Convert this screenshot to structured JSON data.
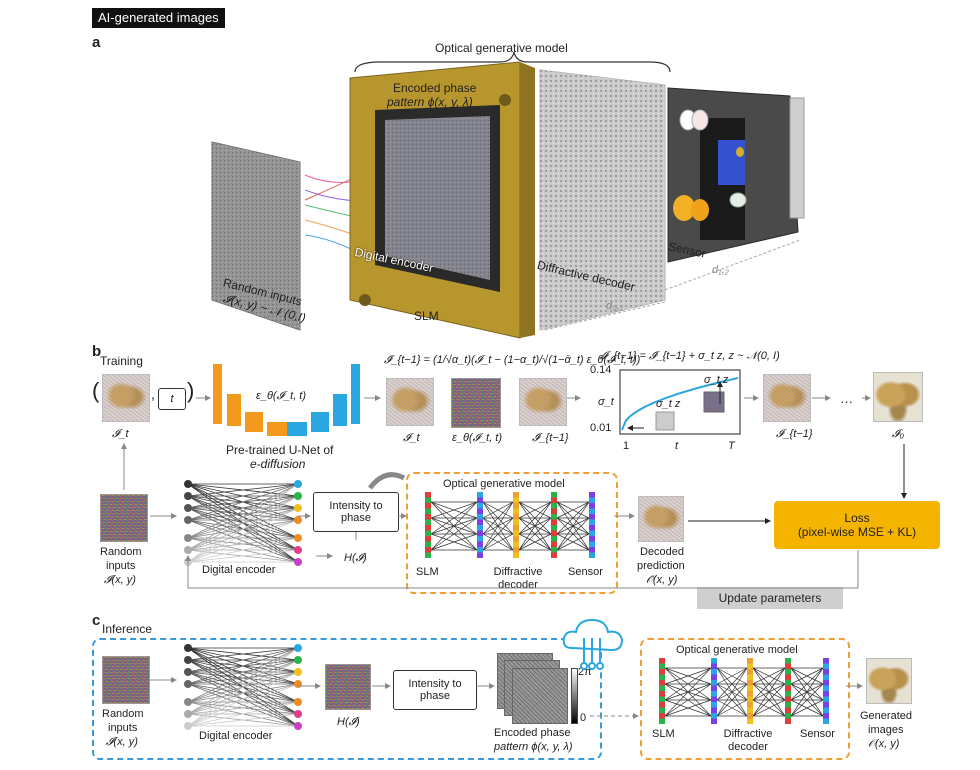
{
  "header": {
    "tag": "AI-generated images"
  },
  "panel_a": {
    "letter": "a",
    "model_title": "Optical generative model",
    "encoded_phase_line1": "Encoded phase",
    "encoded_phase_line2": "pattern ϕ(x, y, λ)",
    "slm_label": "SLM",
    "digital_encoder_label": "Digital encoder",
    "random_inputs_line1": "Random inputs",
    "random_inputs_line2": "𝓘(x, y) ~ 𝒩 (0,I)",
    "diffractive_decoder_label": "Diffractive decoder",
    "sensor_label": "Sensor",
    "d12_label": "d₁,₂",
    "d01_label": "d₀,₁"
  },
  "panel_b": {
    "letter": "b",
    "training_label": "Training",
    "t_box": "t",
    "unet_caption_line1": "Pre-trained U-Net of",
    "unet_caption_line2": "e-diffusion",
    "eps_label": "ε_θ(𝓘_t, t)",
    "update_eq": "𝓘̂_{t−1} = (1/√α_t)(𝓘_t − (1−α_t)/√(1−ᾱ_t) ε_θ(𝓘_t, t))",
    "noise_eq": "𝓘_{t−1} = 𝓘̂_{t−1} + σ_t z,  z ~ 𝒩(0, I)",
    "it_label": "𝓘_t",
    "eps_img_label": "ε_θ(𝓘_t, t)",
    "ihat_label": "𝓘̂_{t−1}",
    "it_minus1_label": "𝓘_{t−1}",
    "i0_label": "𝓘₀",
    "ellipsis": "···",
    "plot": {
      "ymax": "0.14",
      "ymin": "0.01",
      "ylabel": "σ_t",
      "x1": "1",
      "xt": "t",
      "xT": "T",
      "small_label": "σ_t z",
      "big_label": "σ_t z"
    },
    "random_inputs_line1": "Random",
    "random_inputs_line2": "inputs",
    "random_inputs_line3": "𝓘(x, y)",
    "digital_encoder_label": "Digital encoder",
    "intensity_box": "Intensity to phase",
    "h_label": "H(𝓘)",
    "ogm_title": "Optical generative model",
    "slm_label": "SLM",
    "diffractive_decoder_label": "Diffractive decoder",
    "sensor_label": "Sensor",
    "decoded_line1": "Decoded",
    "decoded_line2": "prediction",
    "decoded_line3": "𝒪̂(x, y)",
    "loss_line1": "Loss",
    "loss_line2": "(pixel-wise MSE + KL)",
    "update_button": "Update parameters",
    "left_paren": "(",
    "right_paren": ")",
    "comma": ","
  },
  "panel_c": {
    "letter": "c",
    "inference_label": "Inference",
    "random_inputs_line1": "Random",
    "random_inputs_line2": "inputs",
    "random_inputs_line3": "𝓘(x, y)",
    "digital_encoder_label": "Digital encoder",
    "h_label": "H(𝓘)",
    "intensity_box": "Intensity to phase",
    "two_pi": "2π",
    "zero": "0",
    "encoded_line1": "Encoded phase",
    "encoded_line2": "pattern ϕ(x, y, λ)",
    "ogm_title": "Optical generative model",
    "slm_label": "SLM",
    "diffractive_decoder_label": "Diffractive decoder",
    "sensor_label": "Sensor",
    "generated_line1": "Generated",
    "generated_line2": "images",
    "generated_line3": "𝒪(x, y)"
  },
  "colors": {
    "accent_orange": "#f0a030",
    "accent_blue": "#3a9ad9",
    "loss_yellow": "#f5b400",
    "unet_orange": "#f39a1e",
    "unet_blue": "#2aa6e0",
    "gold_frame": "#b8962e"
  }
}
